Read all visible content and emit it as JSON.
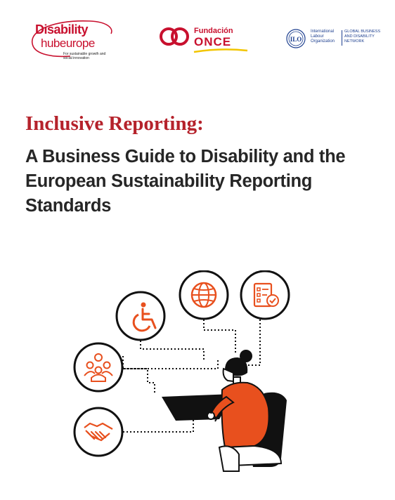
{
  "logos": {
    "disability_hub": {
      "line1": "Disability",
      "line2": "hubeurope",
      "tagline": "For sustainable growth and social innovation"
    },
    "fundacion_once": {
      "line1": "Fundación",
      "line2": "ONCE"
    },
    "ilo": {
      "name": "International Labour Organization",
      "network": "GLOBAL BUSINESS AND DISABILITY NETWORK",
      "mark": "ILO"
    }
  },
  "title": "Inclusive Reporting:",
  "subtitle": "A Business Guide to Disability and the European Sustainability Reporting Standards",
  "icons": [
    "wheelchair-icon",
    "globe-icon",
    "checklist-icon",
    "people-group-icon",
    "handshake-icon"
  ],
  "colors": {
    "accent_red": "#b5222b",
    "illustration_orange": "#e8501e",
    "text_dark": "#262626",
    "ilo_blue": "#1d3f8f"
  }
}
